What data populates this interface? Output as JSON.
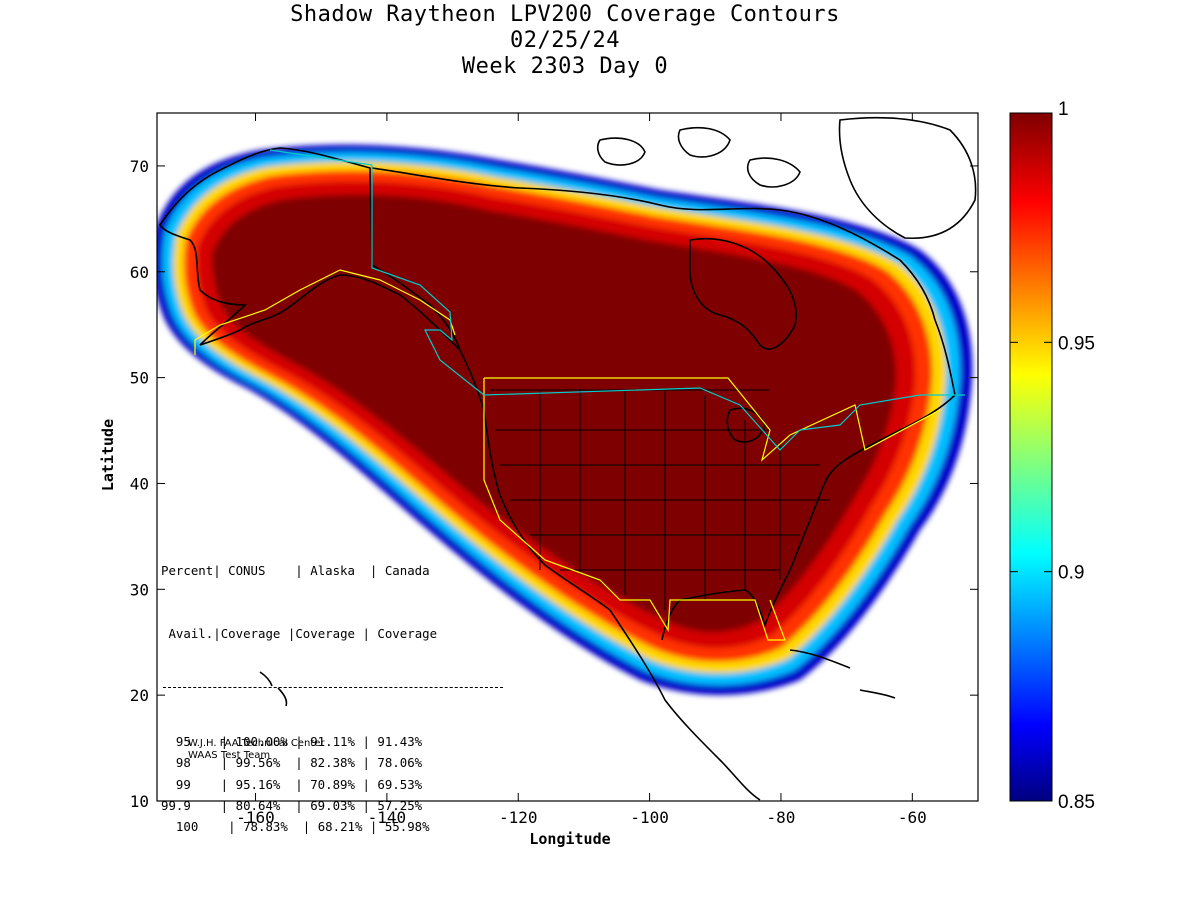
{
  "title": {
    "line1": "Shadow Raytheon LPV200 Coverage Contours",
    "line2": "02/25/24",
    "line3": "Week 2303 Day 0"
  },
  "map": {
    "xlabel": "Longitude",
    "ylabel": "Latitude",
    "xlim": [
      -175,
      -50
    ],
    "ylim": [
      10,
      75
    ],
    "x_ticks": [
      -160,
      -140,
      -120,
      -100,
      -80,
      -60
    ],
    "y_ticks": [
      10,
      20,
      30,
      40,
      50,
      60,
      70
    ]
  },
  "colorbar": {
    "range": [
      0.85,
      1
    ],
    "tick_labels": [
      "1",
      "0.95",
      "0.9",
      "0.85"
    ],
    "tick_values": [
      1,
      0.95,
      0.9,
      0.85
    ],
    "colormap": "jet"
  },
  "stats": {
    "headers": [
      "Percent",
      "CONUS",
      "Alaska",
      "Canada"
    ],
    "subheaders": [
      "Avail.",
      "Coverage",
      "Coverage",
      "Coverage"
    ],
    "rows": [
      {
        "pct": "95",
        "conus": "100.00%",
        "alaska": "91.11%",
        "canada": "91.43%"
      },
      {
        "pct": "98",
        "conus": "99.56%",
        "alaska": "82.38%",
        "canada": "78.06%"
      },
      {
        "pct": "99",
        "conus": "95.16%",
        "alaska": "70.89%",
        "canada": "69.53%"
      },
      {
        "pct": "99.9",
        "conus": "80.64%",
        "alaska": "69.03%",
        "canada": "57.25%"
      },
      {
        "pct": "100",
        "conus": "78.83%",
        "alaska": "68.21%",
        "canada": "55.98%"
      }
    ]
  },
  "credit": {
    "line1": "W.J.H. FAA Technical Center",
    "line2": "WAAS Test Team"
  }
}
